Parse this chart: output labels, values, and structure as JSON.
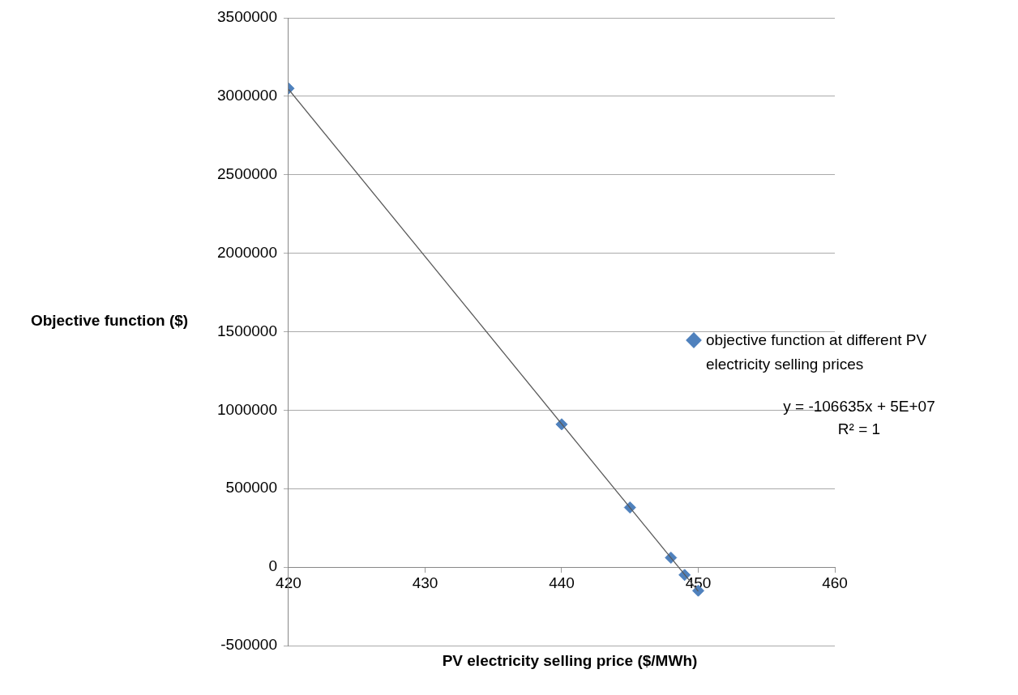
{
  "chart_data": {
    "type": "scatter",
    "xlabel": "PV electricity selling price ($/MWh)",
    "ylabel": "Objective function ($)",
    "x": [
      420,
      440,
      445,
      448,
      449,
      450
    ],
    "series": [
      {
        "name": "objective function at different  PV electricity selling prices",
        "color": "#4f81bd",
        "values": [
          3050000,
          910000,
          380000,
          60000,
          -50000,
          -150000
        ],
        "marker": "diamond"
      },
      {
        "type": "line",
        "color": "#595959",
        "x": [
          420,
          450
        ],
        "values": [
          3045000,
          -154000
        ],
        "marker": "none"
      }
    ],
    "xlim": [
      420,
      460
    ],
    "xticks": [
      420,
      430,
      440,
      450,
      460
    ],
    "ylim": [
      -500000,
      3500000
    ],
    "yticks": [
      -500000,
      0,
      500000,
      1000000,
      1500000,
      2000000,
      2500000,
      3000000,
      3500000
    ],
    "grid": "y",
    "legend": "right",
    "annotations": [
      "y = -106635x + 5E+07",
      "R² = 1"
    ]
  }
}
